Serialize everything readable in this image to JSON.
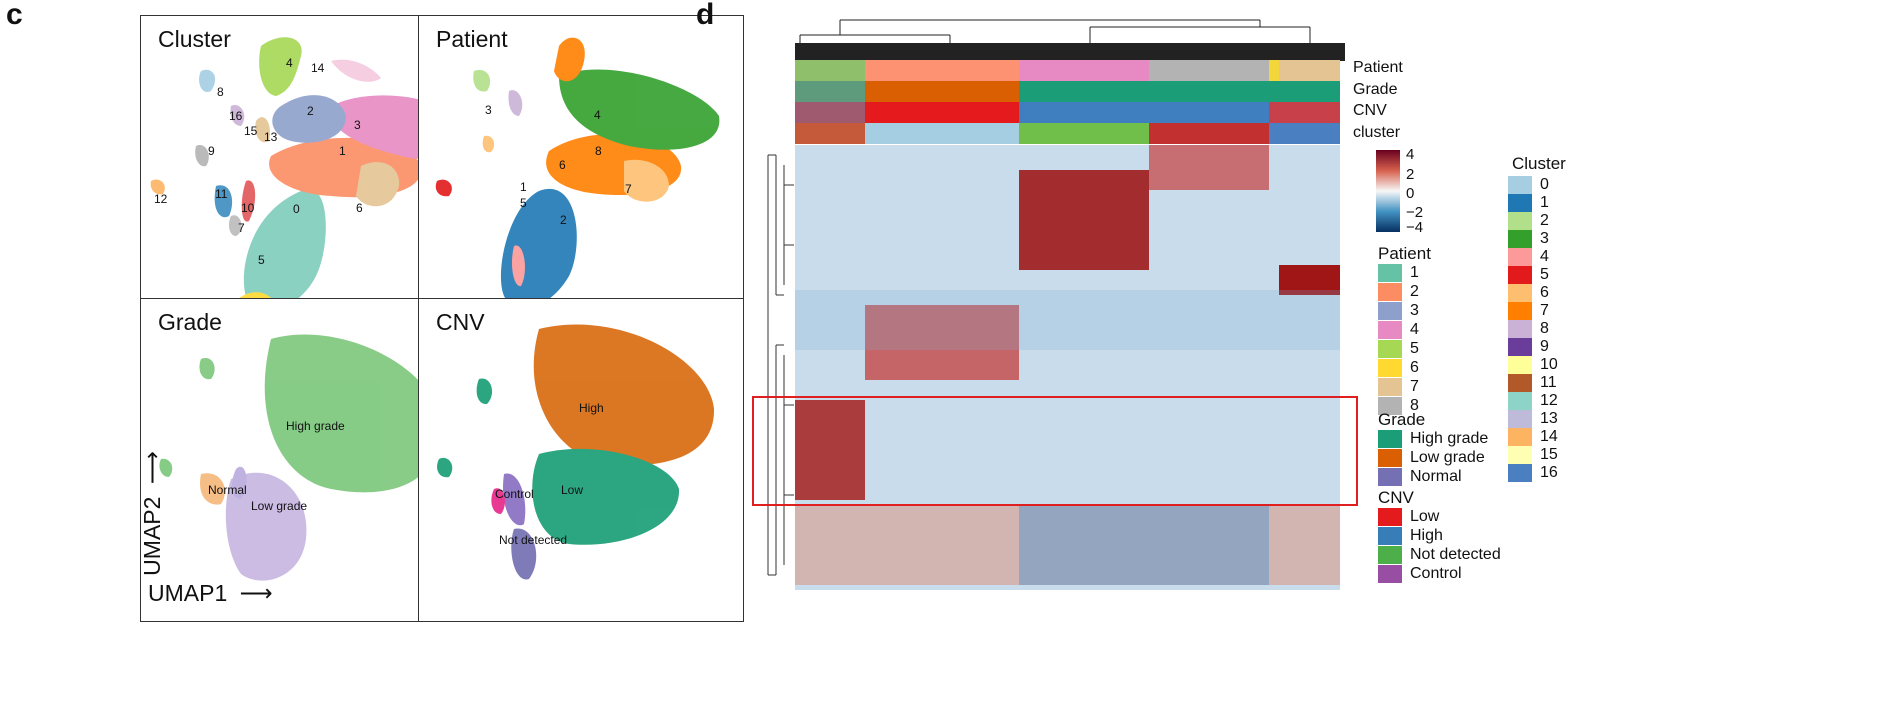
{
  "panel_c": {
    "letter": "c",
    "x_axis_label": "UMAP1",
    "y_axis_label": "UMAP2",
    "cluster_panel": {
      "title": "Cluster",
      "labels": [
        "0",
        "1",
        "2",
        "3",
        "4",
        "5",
        "6",
        "7",
        "8",
        "9",
        "10",
        "11",
        "12",
        "13",
        "14",
        "15",
        "16"
      ]
    },
    "patient_panel": {
      "title": "Patient",
      "labels": [
        "1",
        "2",
        "3",
        "4",
        "5",
        "6",
        "7",
        "8"
      ]
    },
    "grade_panel": {
      "title": "Grade",
      "labels": [
        "High grade",
        "Low grade",
        "Normal"
      ]
    },
    "cnv_panel": {
      "title": "CNV",
      "labels": [
        "High",
        "Low",
        "Control",
        "Not detected"
      ]
    }
  },
  "panel_d": {
    "letter": "d",
    "annotation_rows": [
      "Patient",
      "Grade",
      "CNV",
      "cluster"
    ],
    "colorbar": {
      "ticks": [
        "4",
        "2",
        "0",
        "−2",
        "−4"
      ]
    },
    "legends": {
      "patient": {
        "title": "Patient",
        "items": [
          {
            "label": "1",
            "color": "#66c2a5"
          },
          {
            "label": "2",
            "color": "#fc8d62"
          },
          {
            "label": "3",
            "color": "#8da0cb"
          },
          {
            "label": "4",
            "color": "#e78ac3"
          },
          {
            "label": "5",
            "color": "#a6d854"
          },
          {
            "label": "6",
            "color": "#ffd92f"
          },
          {
            "label": "7",
            "color": "#e5c494"
          },
          {
            "label": "8",
            "color": "#b3b3b3"
          }
        ]
      },
      "grade": {
        "title": "Grade",
        "items": [
          {
            "label": "High grade",
            "color": "#1b9e77"
          },
          {
            "label": "Low grade",
            "color": "#d95f02"
          },
          {
            "label": "Normal",
            "color": "#7570b3"
          }
        ]
      },
      "cnv": {
        "title": "CNV",
        "items": [
          {
            "label": "Low",
            "color": "#e41a1c"
          },
          {
            "label": "High",
            "color": "#377eb8"
          },
          {
            "label": "Not detected",
            "color": "#4daf4a"
          },
          {
            "label": "Control",
            "color": "#984ea3"
          }
        ]
      },
      "cluster": {
        "title": "Cluster",
        "items": [
          {
            "label": "0",
            "color": "#a6cee3"
          },
          {
            "label": "1",
            "color": "#1f78b4"
          },
          {
            "label": "2",
            "color": "#b2df8a"
          },
          {
            "label": "3",
            "color": "#33a02c"
          },
          {
            "label": "4",
            "color": "#fb9a99"
          },
          {
            "label": "5",
            "color": "#e31a1c"
          },
          {
            "label": "6",
            "color": "#fdbf6f"
          },
          {
            "label": "7",
            "color": "#ff7f00"
          },
          {
            "label": "8",
            "color": "#cab2d6"
          },
          {
            "label": "9",
            "color": "#6a3d9a"
          },
          {
            "label": "10",
            "color": "#ffff99"
          },
          {
            "label": "11",
            "color": "#b15928"
          },
          {
            "label": "12",
            "color": "#8dd3c7"
          },
          {
            "label": "13",
            "color": "#bebada"
          },
          {
            "label": "14",
            "color": "#fdb462"
          },
          {
            "label": "15",
            "color": "#ffffb3"
          },
          {
            "label": "16",
            "color": "#4a7fc1"
          }
        ]
      }
    },
    "highlight_color": "#e02020"
  }
}
